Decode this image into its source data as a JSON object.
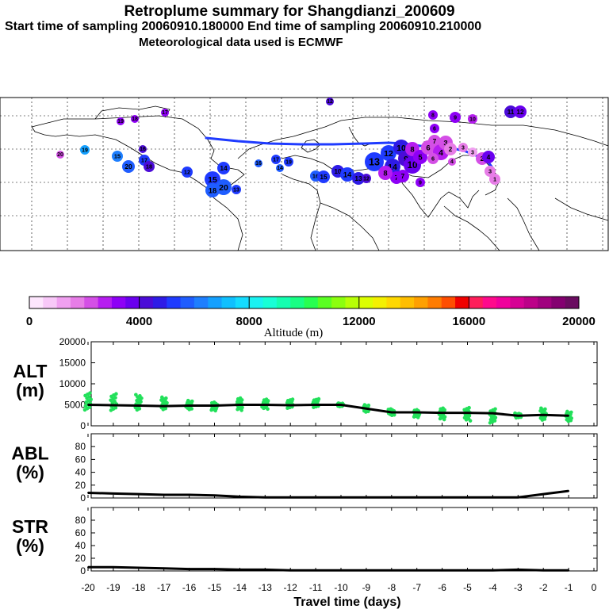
{
  "header": {
    "title": "Retroplume summary for Shangdianzi_200609",
    "sampling": "Start time of sampling 20060910.180000     End time of sampling 20060910.210000",
    "met": "Meteorological data used is ECMWF"
  },
  "colorbar": {
    "ticks": [
      "0",
      "4000",
      "8000",
      "12000",
      "16000",
      "20000"
    ],
    "label": "Altitude (m)",
    "colors": [
      "#fde6fd",
      "#f8c8f8",
      "#f0a0f0",
      "#e77de7",
      "#d44fe6",
      "#b61df0",
      "#8e00f6",
      "#6a00ef",
      "#4b0bd8",
      "#2e1be6",
      "#1f3bff",
      "#1f5dff",
      "#1e7fff",
      "#14a0ff",
      "#10c0ff",
      "#14dcff",
      "#1af2f2",
      "#18ffd6",
      "#14ffb0",
      "#18ff84",
      "#28ff50",
      "#5aff22",
      "#8cff0e",
      "#b8ff06",
      "#dcff00",
      "#f4f000",
      "#ffd800",
      "#ffbe00",
      "#ffa000",
      "#ff7c00",
      "#ff4e00",
      "#f00000",
      "#ff1e5a",
      "#ff0a8c",
      "#f0009c",
      "#d60094",
      "#bc0088",
      "#a0007e",
      "#840070",
      "#6a0c60"
    ]
  },
  "plume_map": {
    "trajectory_labels": [
      "20",
      "19",
      "18",
      "17",
      "16",
      "15",
      "14",
      "13",
      "12",
      "11",
      "10",
      "9",
      "8",
      "7",
      "6",
      "5",
      "4",
      "3",
      "2",
      "1"
    ]
  },
  "chart_data": [
    {
      "type": "line",
      "panel": "ALT",
      "ylabel": "ALT\n(m)",
      "ylim": [
        0,
        20000
      ],
      "yticks": [
        "20000",
        "15000",
        "10000",
        "5000",
        "0"
      ],
      "x": [
        -20,
        -19,
        -18,
        -17,
        -16,
        -15,
        -14,
        -13,
        -12,
        -11,
        -10,
        -9,
        -8,
        -7,
        -6,
        -5,
        -4,
        -3,
        -2,
        -1
      ],
      "series": [
        {
          "name": "mean altitude",
          "values": [
            5000,
            4900,
            4800,
            4700,
            4800,
            4800,
            5000,
            5000,
            4900,
            5000,
            5000,
            4100,
            3200,
            3200,
            3100,
            3100,
            3000,
            2400,
            2600,
            2400
          ]
        }
      ],
      "scatter_spread": [
        {
          "x": -20,
          "min": 3800,
          "max": 7800
        },
        {
          "x": -19,
          "min": 3700,
          "max": 7600
        },
        {
          "x": -18,
          "min": 3800,
          "max": 7400
        },
        {
          "x": -17,
          "min": 3900,
          "max": 6800
        },
        {
          "x": -16,
          "min": 3900,
          "max": 6000
        },
        {
          "x": -15,
          "min": 3600,
          "max": 5600
        },
        {
          "x": -14,
          "min": 3700,
          "max": 6600
        },
        {
          "x": -13,
          "min": 4000,
          "max": 6300
        },
        {
          "x": -12,
          "min": 4200,
          "max": 6300
        },
        {
          "x": -11,
          "min": 4400,
          "max": 6400
        },
        {
          "x": -10,
          "min": 4600,
          "max": 5400
        },
        {
          "x": -9,
          "min": 3300,
          "max": 5000
        },
        {
          "x": -8,
          "min": 2500,
          "max": 4000
        },
        {
          "x": -7,
          "min": 2000,
          "max": 3800
        },
        {
          "x": -6,
          "min": 1500,
          "max": 4200
        },
        {
          "x": -5,
          "min": 1200,
          "max": 4300
        },
        {
          "x": -4,
          "min": 700,
          "max": 4000
        },
        {
          "x": -3,
          "min": 1900,
          "max": 3000
        },
        {
          "x": -2,
          "min": 1400,
          "max": 4200
        },
        {
          "x": -1,
          "min": 1100,
          "max": 3400
        }
      ]
    },
    {
      "type": "line",
      "panel": "ABL",
      "ylabel": "ABL\n(%)",
      "ylim": [
        0,
        100
      ],
      "yticks": [
        "80",
        "60",
        "40",
        "20",
        "0"
      ],
      "x": [
        -20,
        -19,
        -18,
        -17,
        -16,
        -15,
        -14,
        -13,
        -12,
        -11,
        -10,
        -9,
        -8,
        -7,
        -6,
        -5,
        -4,
        -3,
        -2,
        -1
      ],
      "series": [
        {
          "name": "fraction in ABL",
          "values": [
            8,
            7,
            6,
            5,
            5,
            4,
            2,
            1,
            1,
            1,
            1,
            1,
            1,
            1,
            1,
            1,
            1,
            1,
            6,
            11
          ]
        }
      ]
    },
    {
      "type": "line",
      "panel": "STR",
      "ylabel": "STR\n(%)",
      "ylim": [
        0,
        100
      ],
      "yticks": [
        "80",
        "60",
        "40",
        "20",
        "0"
      ],
      "x": [
        -20,
        -19,
        -18,
        -17,
        -16,
        -15,
        -14,
        -13,
        -12,
        -11,
        -10,
        -9,
        -8,
        -7,
        -6,
        -5,
        -4,
        -3,
        -2,
        -1
      ],
      "series": [
        {
          "name": "fraction in stratosphere",
          "values": [
            6,
            6,
            5,
            4,
            3,
            3,
            2,
            2,
            1,
            1,
            1,
            1,
            1,
            1,
            1,
            1,
            1,
            2,
            1,
            1
          ]
        }
      ],
      "xlabel": "Travel time (days)",
      "xticks": [
        "-20",
        "-19",
        "-18",
        "-17",
        "-16",
        "-15",
        "-14",
        "-13",
        "-12",
        "-11",
        "-10",
        "-9",
        "-8",
        "-7",
        "-6",
        "-5",
        "-4",
        "-3",
        "-2",
        "-1",
        "0"
      ]
    }
  ]
}
